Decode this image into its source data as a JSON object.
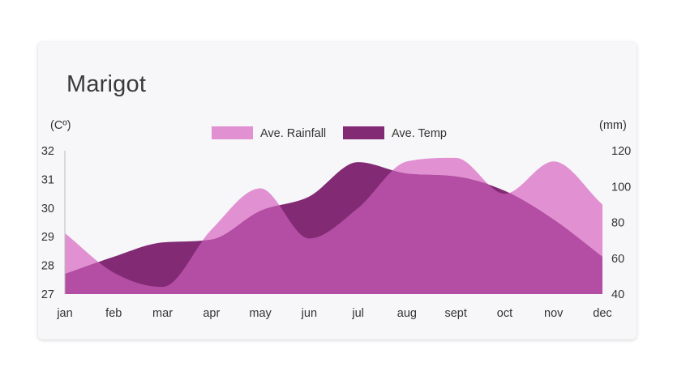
{
  "page": {
    "title": "Marigot"
  },
  "colors": {
    "rainfall": "#e191d2",
    "temp": "#822a74",
    "overlap": "#b44ea4",
    "axis": "#333333"
  },
  "chart_data": {
    "type": "area",
    "title": "Marigot",
    "categories": [
      "jan",
      "feb",
      "mar",
      "apr",
      "may",
      "jun",
      "jul",
      "aug",
      "sept",
      "oct",
      "nov",
      "dec"
    ],
    "y_left": {
      "label": "(Cº)",
      "ticks": [
        27,
        28,
        29,
        30,
        31,
        32
      ],
      "range": [
        27,
        32
      ]
    },
    "y_right": {
      "label": "(mm)",
      "ticks": [
        40,
        60,
        80,
        100,
        120
      ],
      "range": [
        40,
        120
      ]
    },
    "legend_position": "top-center",
    "series": [
      {
        "name": "Ave. Rainfall",
        "axis": "right",
        "values": [
          74,
          52,
          44,
          76,
          99,
          71,
          88,
          114,
          116,
          96,
          114,
          90
        ]
      },
      {
        "name": "Ave. Temp",
        "axis": "left",
        "values": [
          27.7,
          28.3,
          28.8,
          28.9,
          29.9,
          30.4,
          31.6,
          31.2,
          31.1,
          30.6,
          29.6,
          28.3
        ]
      }
    ]
  }
}
